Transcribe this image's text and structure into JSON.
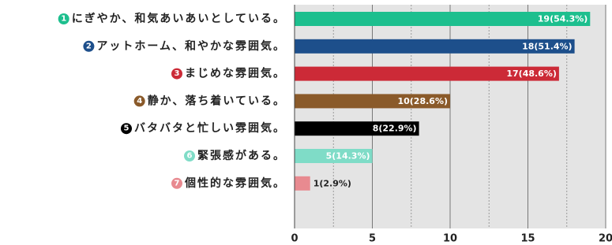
{
  "chart_data": {
    "type": "bar",
    "orientation": "horizontal",
    "numbers": [
      "1",
      "2",
      "3",
      "4",
      "5",
      "6",
      "7"
    ],
    "categories": [
      "にぎやか、和気あいあいとしている。",
      "アットホーム、和やかな雰囲気。",
      "まじめな雰囲気。",
      "静か、落ち着いている。",
      "バタバタと忙しい雰囲気。",
      "緊張感がある。",
      "個性的な雰囲気。"
    ],
    "values": [
      19,
      18,
      17,
      10,
      8,
      5,
      1
    ],
    "value_labels": [
      "19(54.3%)",
      "18(51.4%)",
      "17(48.6%)",
      "10(28.6%)",
      "8(22.9%)",
      "5(14.3%)",
      "1(2.9%)"
    ],
    "colors": [
      "#1dbf8e",
      "#1d4f8b",
      "#cc2a37",
      "#8a5a2a",
      "#000000",
      "#7fdcc7",
      "#e88a90"
    ],
    "xlim": [
      0,
      20
    ],
    "xticks": [
      0,
      5,
      10,
      15,
      20
    ],
    "xminorticks": [
      2.5,
      7.5,
      12.5,
      17.5
    ],
    "grid": true
  }
}
